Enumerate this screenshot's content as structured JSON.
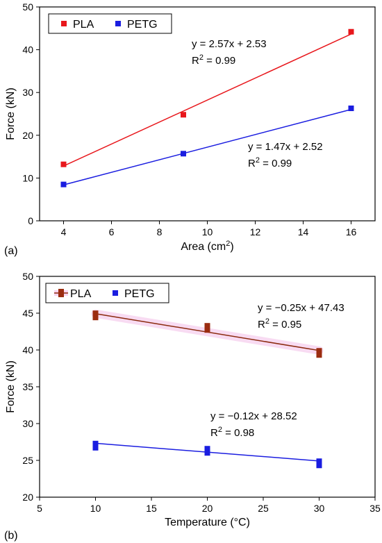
{
  "chart_data": [
    {
      "panel_label": "(a)",
      "type": "scatter",
      "xlabel_main": "Area (cm",
      "xlabel_sup": "2",
      "xlabel_end": ")",
      "ylabel": "Force (kN)",
      "xlim": [
        3,
        17
      ],
      "ylim": [
        0,
        50
      ],
      "xticks": [
        4,
        6,
        8,
        10,
        12,
        14,
        16
      ],
      "yticks": [
        0,
        10,
        20,
        30,
        40,
        50
      ],
      "legend_position": "top-left",
      "series": [
        {
          "name": "PLA",
          "color": "#e8171c",
          "points": [
            {
              "x": 4,
              "y": 13.2
            },
            {
              "x": 9,
              "y": 24.8
            },
            {
              "x": 16,
              "y": 44.2
            }
          ],
          "fit": {
            "slope": 2.57,
            "intercept": 2.53
          },
          "equation": "y = 2.57x + 2.53",
          "r2_prefix": "R",
          "r2_sup": "2",
          "r2_value": " = 0.99"
        },
        {
          "name": "PETG",
          "color": "#1a1de0",
          "points": [
            {
              "x": 4,
              "y": 8.5
            },
            {
              "x": 9,
              "y": 15.7
            },
            {
              "x": 16,
              "y": 26.3
            }
          ],
          "fit": {
            "slope": 1.47,
            "intercept": 2.52
          },
          "equation": "y = 1.47x + 2.52",
          "r2_prefix": "R",
          "r2_sup": "2",
          "r2_value": " = 0.99"
        }
      ]
    },
    {
      "panel_label": "(b)",
      "type": "scatter",
      "xlabel": "Temperature (°C)",
      "ylabel": "Force (kN)",
      "xlim": [
        5,
        35
      ],
      "ylim": [
        20,
        50
      ],
      "xticks": [
        5,
        10,
        15,
        20,
        25,
        30,
        35
      ],
      "yticks": [
        20,
        25,
        30,
        35,
        40,
        45,
        50
      ],
      "legend_position": "top-left",
      "series": [
        {
          "name": "PLA",
          "color": "#9b2c10",
          "line_color": "#8b2a0e",
          "band_color": "#f7d3ef",
          "points": [
            {
              "x": 10,
              "y": 44.7
            },
            {
              "x": 20,
              "y": 43.0
            },
            {
              "x": 30,
              "y": 39.6
            }
          ],
          "fit": {
            "slope": -0.25,
            "intercept": 47.43
          },
          "equation": "y = −0.25x + 47.43",
          "r2_prefix": "R",
          "r2_sup": "2",
          "r2_value": " = 0.95"
        },
        {
          "name": "PETG",
          "color": "#1a1de0",
          "points": [
            {
              "x": 10,
              "y": 27.0
            },
            {
              "x": 20,
              "y": 26.3
            },
            {
              "x": 30,
              "y": 24.6
            }
          ],
          "fit": {
            "slope": -0.12,
            "intercept": 28.52
          },
          "equation": "y = −0.12x + 28.52",
          "r2_prefix": "R",
          "r2_sup": "2",
          "r2_value": " = 0.98"
        }
      ]
    }
  ]
}
